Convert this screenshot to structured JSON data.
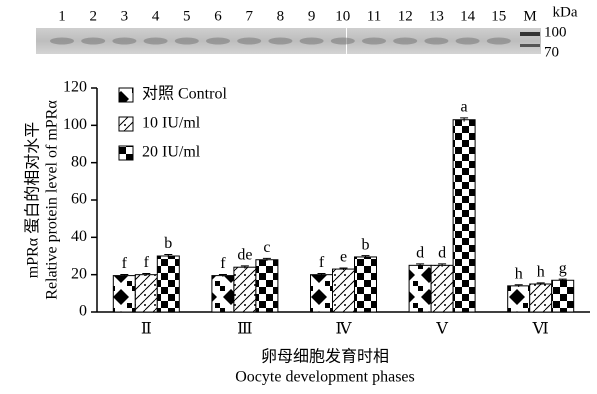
{
  "blot": {
    "lanes": [
      "1",
      "2",
      "3",
      "4",
      "5",
      "6",
      "7",
      "8",
      "9",
      "10",
      "11",
      "12",
      "13",
      "14",
      "15",
      "M"
    ],
    "unit": "kDa",
    "markers": [
      "100",
      "70"
    ]
  },
  "chart_data": {
    "type": "bar",
    "ylabel": [
      "mPRα 蛋白的相对水平",
      "Relative protein level of mPRα"
    ],
    "xlabel": [
      "卵母细胞发育时相",
      "Oocyte development phases"
    ],
    "categories": [
      "Ⅱ",
      "Ⅲ",
      "Ⅳ",
      "Ⅴ",
      "Ⅵ"
    ],
    "series": [
      {
        "name": "对照 Control",
        "color": "#000000",
        "values": [
          19.5,
          19.5,
          20,
          25,
          14
        ],
        "errors": [
          0.6,
          0.6,
          0.6,
          0.8,
          0.6
        ],
        "value_labels": [
          "f",
          "f",
          "f",
          "d",
          "h"
        ]
      },
      {
        "name": "10 IU/ml",
        "color": "#000000",
        "values": [
          20,
          24,
          23,
          25,
          15
        ],
        "errors": [
          0.6,
          0.7,
          0.6,
          0.8,
          0.6
        ],
        "value_labels": [
          "f",
          "de",
          "e",
          "d",
          "h"
        ]
      },
      {
        "name": "20 IU/ml",
        "color": "#000000",
        "values": [
          30,
          28,
          29.5,
          103,
          17
        ],
        "errors": [
          0.8,
          0.7,
          0.7,
          1,
          0.6
        ],
        "value_labels": [
          "b",
          "c",
          "b",
          "a",
          "g"
        ]
      }
    ],
    "ylim": [
      0,
      120
    ],
    "yticks": [
      0,
      20,
      40,
      60,
      80,
      100,
      120
    ],
    "legend": "upper left"
  }
}
